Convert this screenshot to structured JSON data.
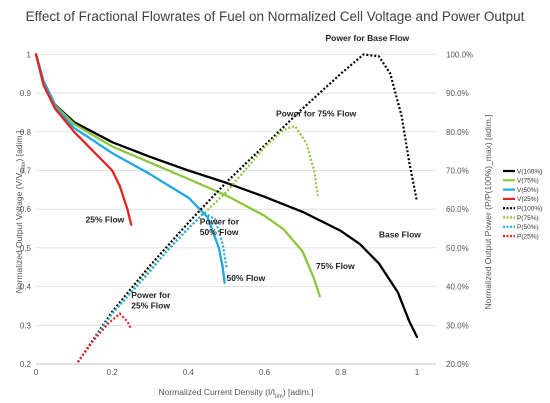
{
  "chart_data": {
    "type": "line",
    "title": "Effect of Fractional Flowrates of Fuel on Normalized Cell Voltage and Power Output",
    "xlabel": "Normalized Current Density (I/I_lim) [adim.]",
    "ylabel_left": "Normalized Output Voltage (V/V_max) [adim.]",
    "ylabel_right": "Normalized Output Power (P/P(100%)_max) [adim.]",
    "xlim": [
      0,
      1.05
    ],
    "ylim_left": [
      0.2,
      1.05
    ],
    "ylim_right": [
      20,
      105
    ],
    "x_ticks": [
      "0",
      "0.2",
      "0.4",
      "0.6",
      "0.8",
      "1"
    ],
    "y_ticks_left": [
      "0.2",
      "0.3",
      "0.4",
      "0.5",
      "0.6",
      "0.7",
      "0.8",
      "0.9",
      "1"
    ],
    "y_ticks_right": [
      "20.0%",
      "30.0%",
      "40.0%",
      "50.0%",
      "60.0%",
      "70.0%",
      "80.0%",
      "90.0%",
      "100.0%"
    ],
    "grid": "horizontal",
    "legend_position": "right",
    "series": [
      {
        "name": "V(100%)",
        "axis": "left",
        "color": "#000000",
        "dash": false,
        "points": [
          [
            0,
            1.0
          ],
          [
            0.02,
            0.93
          ],
          [
            0.05,
            0.87
          ],
          [
            0.1,
            0.825
          ],
          [
            0.2,
            0.773
          ],
          [
            0.3,
            0.735
          ],
          [
            0.4,
            0.7
          ],
          [
            0.5,
            0.668
          ],
          [
            0.6,
            0.632
          ],
          [
            0.7,
            0.593
          ],
          [
            0.8,
            0.544
          ],
          [
            0.85,
            0.51
          ],
          [
            0.9,
            0.46
          ],
          [
            0.95,
            0.385
          ],
          [
            0.98,
            0.31
          ],
          [
            1.0,
            0.27
          ]
        ]
      },
      {
        "name": "V(75%)",
        "axis": "left",
        "color": "#8cc63f",
        "dash": false,
        "points": [
          [
            0,
            1.0
          ],
          [
            0.02,
            0.93
          ],
          [
            0.05,
            0.868
          ],
          [
            0.1,
            0.82
          ],
          [
            0.2,
            0.762
          ],
          [
            0.3,
            0.72
          ],
          [
            0.4,
            0.678
          ],
          [
            0.5,
            0.635
          ],
          [
            0.6,
            0.583
          ],
          [
            0.65,
            0.548
          ],
          [
            0.7,
            0.49
          ],
          [
            0.73,
            0.42
          ],
          [
            0.745,
            0.375
          ]
        ]
      },
      {
        "name": "V(50%)",
        "axis": "left",
        "color": "#1ea7e1",
        "dash": false,
        "points": [
          [
            0,
            1.0
          ],
          [
            0.02,
            0.93
          ],
          [
            0.05,
            0.865
          ],
          [
            0.1,
            0.81
          ],
          [
            0.2,
            0.745
          ],
          [
            0.3,
            0.69
          ],
          [
            0.35,
            0.66
          ],
          [
            0.4,
            0.63
          ],
          [
            0.45,
            0.58
          ],
          [
            0.48,
            0.5
          ],
          [
            0.49,
            0.45
          ],
          [
            0.495,
            0.41
          ]
        ]
      },
      {
        "name": "V(25%)",
        "axis": "left",
        "color": "#e8231f",
        "dash": false,
        "points": [
          [
            0,
            1.0
          ],
          [
            0.02,
            0.92
          ],
          [
            0.05,
            0.86
          ],
          [
            0.1,
            0.8
          ],
          [
            0.15,
            0.75
          ],
          [
            0.2,
            0.7
          ],
          [
            0.22,
            0.66
          ],
          [
            0.24,
            0.6
          ],
          [
            0.25,
            0.56
          ]
        ]
      },
      {
        "name": "P(100%)",
        "axis": "right",
        "color": "#000000",
        "dash": true,
        "points": [
          [
            0.11,
            20.5
          ],
          [
            0.2,
            33.5
          ],
          [
            0.3,
            45.5
          ],
          [
            0.4,
            56.5
          ],
          [
            0.5,
            67
          ],
          [
            0.6,
            76.5
          ],
          [
            0.7,
            86
          ],
          [
            0.8,
            95
          ],
          [
            0.86,
            100.0
          ],
          [
            0.9,
            99.5
          ],
          [
            0.93,
            95
          ],
          [
            0.96,
            84
          ],
          [
            0.98,
            72
          ],
          [
            1.0,
            62
          ]
        ]
      },
      {
        "name": "P(75%)",
        "axis": "right",
        "color": "#8cc63f",
        "dash": true,
        "points": [
          [
            0.11,
            20.5
          ],
          [
            0.2,
            33
          ],
          [
            0.3,
            44.5
          ],
          [
            0.4,
            55
          ],
          [
            0.5,
            64.5
          ],
          [
            0.6,
            76
          ],
          [
            0.65,
            80.5
          ],
          [
            0.68,
            81.5
          ],
          [
            0.71,
            77
          ],
          [
            0.73,
            70
          ],
          [
            0.74,
            63.5
          ]
        ]
      },
      {
        "name": "P(50%)",
        "axis": "right",
        "color": "#1ea7e1",
        "dash": true,
        "points": [
          [
            0.11,
            20.5
          ],
          [
            0.2,
            33
          ],
          [
            0.3,
            44
          ],
          [
            0.35,
            50
          ],
          [
            0.4,
            55
          ],
          [
            0.44,
            59
          ],
          [
            0.47,
            57.5
          ],
          [
            0.49,
            51
          ],
          [
            0.5,
            45
          ]
        ]
      },
      {
        "name": "P(25%)",
        "axis": "right",
        "color": "#e8231f",
        "dash": true,
        "points": [
          [
            0.11,
            20.5
          ],
          [
            0.15,
            26
          ],
          [
            0.19,
            30.5
          ],
          [
            0.22,
            33
          ],
          [
            0.24,
            31
          ],
          [
            0.25,
            29
          ]
        ]
      }
    ],
    "annotations": [
      {
        "lines": [
          "Power for Base Flow"
        ],
        "x": 0.76,
        "y": 103.5,
        "axis": "right"
      },
      {
        "lines": [
          "Power for 75% Flow"
        ],
        "x": 0.63,
        "y": 84,
        "axis": "right"
      },
      {
        "lines": [
          "Power for",
          "50% Flow"
        ],
        "x": 0.43,
        "y": 0.56,
        "axis": "left"
      },
      {
        "lines": [
          "Power for",
          "25% Flow"
        ],
        "x": 0.25,
        "y": 0.37,
        "axis": "left"
      },
      {
        "lines": [
          "25% Flow"
        ],
        "x": 0.13,
        "y": 0.565,
        "axis": "left"
      },
      {
        "lines": [
          "50% Flow"
        ],
        "x": 0.5,
        "y": 0.415,
        "axis": "left"
      },
      {
        "lines": [
          "75% Flow"
        ],
        "x": 0.735,
        "y": 0.445,
        "axis": "left"
      },
      {
        "lines": [
          "Base Flow"
        ],
        "x": 0.9,
        "y": 0.527,
        "axis": "left"
      }
    ]
  }
}
